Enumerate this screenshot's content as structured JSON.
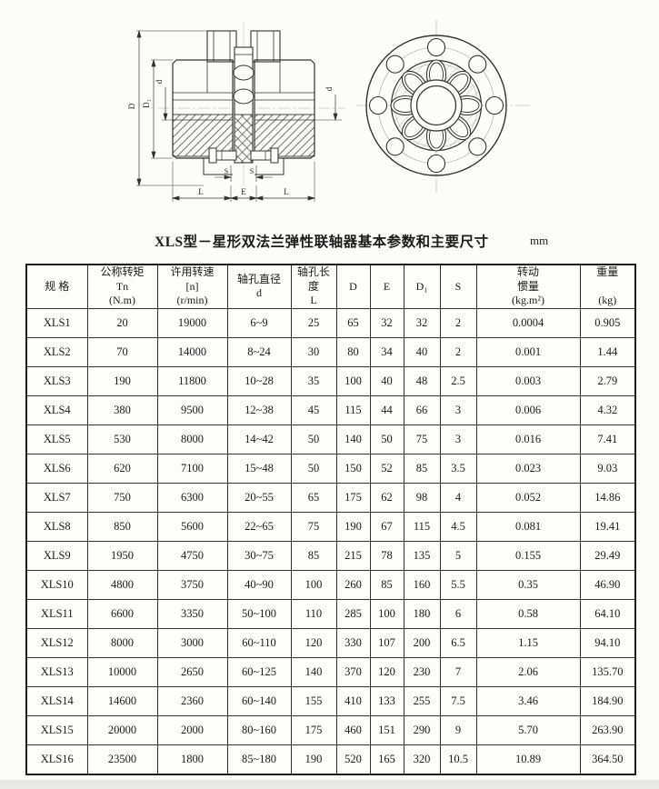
{
  "page": {
    "title": "XLS型－星形双法兰弹性联轴器基本参数和主要尺寸",
    "unit": "mm"
  },
  "drawing": {
    "labels": {
      "D": "D",
      "D1": "D₁",
      "d": "d",
      "S": "S",
      "L": "L",
      "E": "E"
    }
  },
  "table": {
    "headers": [
      "规 格",
      "公称转矩\nTn\n(N.m)",
      "许用转速\n[n]\n(r/min)",
      "轴孔直径\nd",
      "轴孔长度\nL",
      "D",
      "E",
      "D₁",
      "S",
      "转动\n惯量\n(kg.m²)",
      "重量\n\n(kg)"
    ],
    "rows": [
      [
        "XLS1",
        "20",
        "19000",
        "6~9",
        "25",
        "65",
        "32",
        "32",
        "2",
        "0.0004",
        "0.905"
      ],
      [
        "XLS2",
        "70",
        "14000",
        "8~24",
        "30",
        "80",
        "34",
        "40",
        "2",
        "0.001",
        "1.44"
      ],
      [
        "XLS3",
        "190",
        "11800",
        "10~28",
        "35",
        "100",
        "40",
        "48",
        "2.5",
        "0.003",
        "2.79"
      ],
      [
        "XLS4",
        "380",
        "9500",
        "12~38",
        "45",
        "115",
        "44",
        "66",
        "3",
        "0.006",
        "4.32"
      ],
      [
        "XLS5",
        "530",
        "8000",
        "14~42",
        "50",
        "140",
        "50",
        "75",
        "3",
        "0.016",
        "7.41"
      ],
      [
        "XLS6",
        "620",
        "7100",
        "15~48",
        "50",
        "150",
        "52",
        "85",
        "3.5",
        "0.023",
        "9.03"
      ],
      [
        "XLS7",
        "750",
        "6300",
        "20~55",
        "65",
        "175",
        "62",
        "98",
        "4",
        "0.052",
        "14.86"
      ],
      [
        "XLS8",
        "850",
        "5600",
        "22~65",
        "75",
        "190",
        "67",
        "115",
        "4.5",
        "0.081",
        "19.41"
      ],
      [
        "XLS9",
        "1950",
        "4750",
        "30~75",
        "85",
        "215",
        "78",
        "135",
        "5",
        "0.155",
        "29.49"
      ],
      [
        "XLS10",
        "4800",
        "3750",
        "40~90",
        "100",
        "260",
        "85",
        "160",
        "5.5",
        "0.35",
        "46.90"
      ],
      [
        "XLS11",
        "6600",
        "3350",
        "50~100",
        "110",
        "285",
        "100",
        "180",
        "6",
        "0.58",
        "64.10"
      ],
      [
        "XLS12",
        "8000",
        "3000",
        "60~110",
        "120",
        "330",
        "107",
        "200",
        "6.5",
        "1.15",
        "94.10"
      ],
      [
        "XLS13",
        "10000",
        "2650",
        "60~125",
        "140",
        "370",
        "120",
        "230",
        "7",
        "2.06",
        "135.70"
      ],
      [
        "XLS14",
        "14600",
        "2360",
        "60~140",
        "155",
        "410",
        "133",
        "255",
        "7.5",
        "3.46",
        "184.90"
      ],
      [
        "XLS15",
        "20000",
        "2000",
        "80~160",
        "175",
        "460",
        "151",
        "290",
        "9",
        "5.70",
        "263.90"
      ],
      [
        "XLS16",
        "23500",
        "1800",
        "85~180",
        "190",
        "520",
        "165",
        "320",
        "10.5",
        "10.89",
        "364.50"
      ]
    ]
  }
}
